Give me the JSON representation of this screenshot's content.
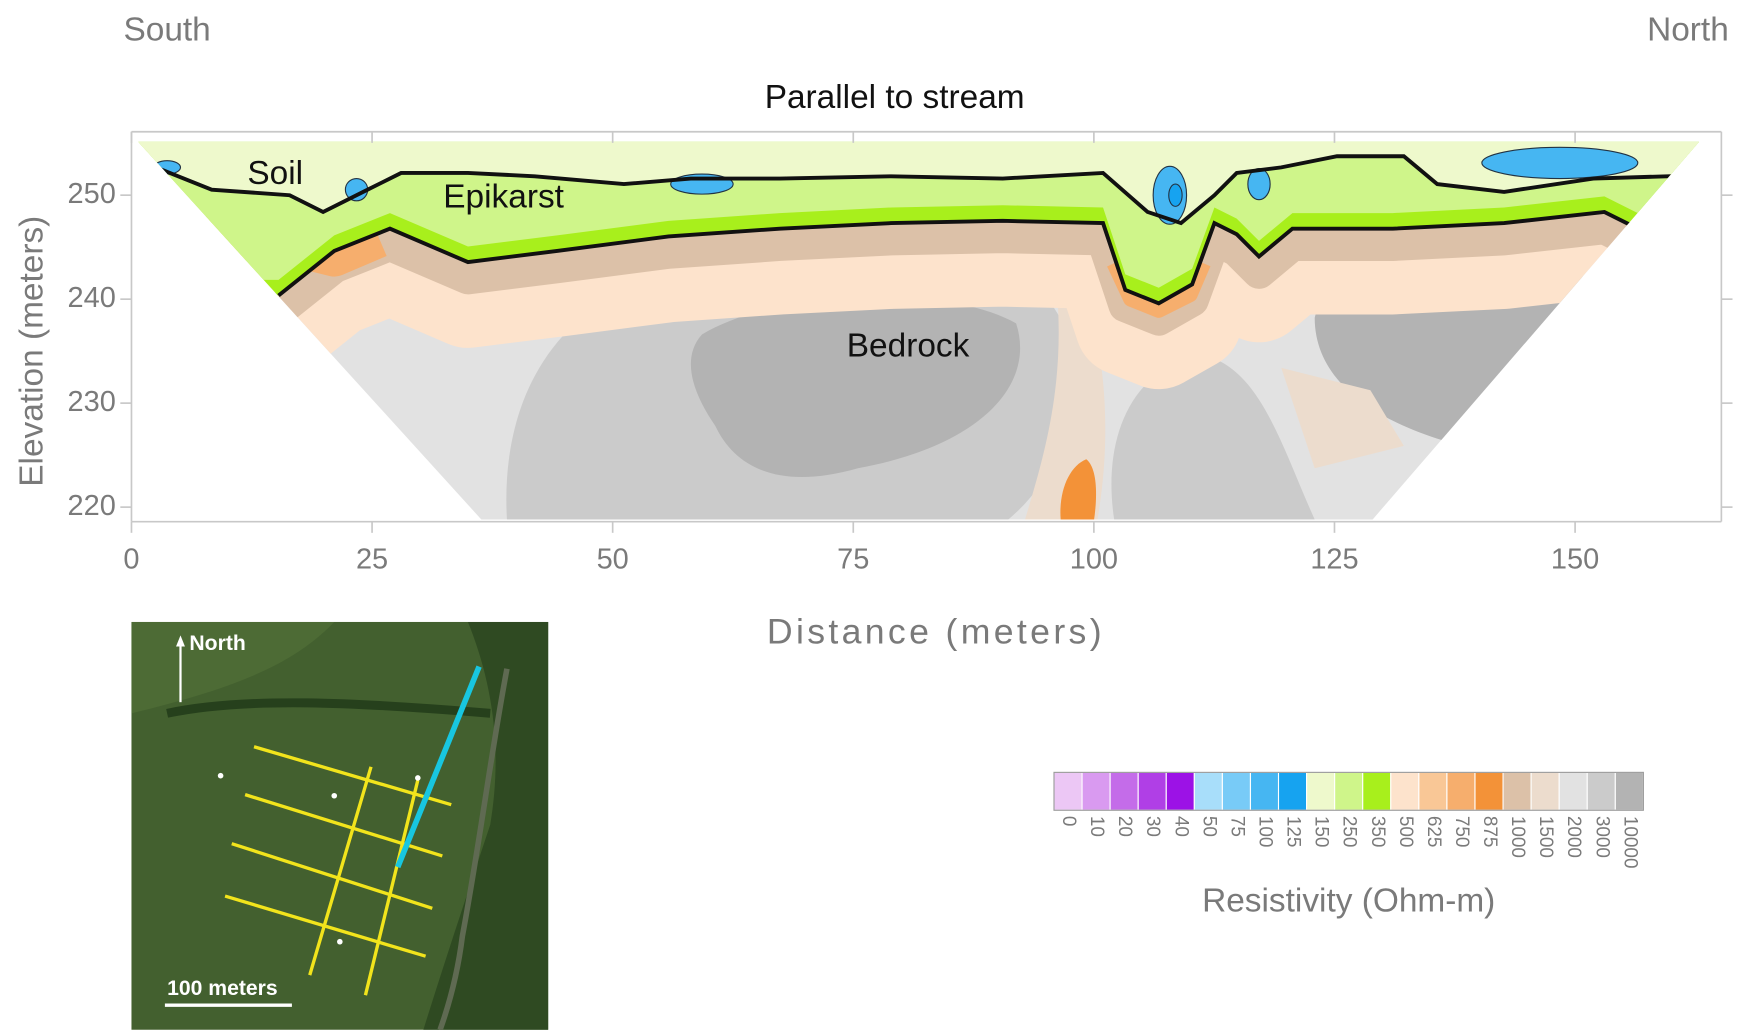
{
  "chart_data": {
    "type": "contour",
    "title": "Parallel to stream",
    "left_label": "South",
    "right_label": "North",
    "x_label": "Distance (meters)",
    "y_label": "Elevation (meters)",
    "annotations": [
      "Soil",
      "Epikarst",
      "Bedrock"
    ],
    "xlim": [
      0,
      165.2
    ],
    "xticks": [
      0,
      25,
      50,
      75,
      100,
      125,
      150
    ],
    "ylim": [
      218.6,
      256.1
    ],
    "yticks": [
      220,
      230,
      240,
      250
    ],
    "colorbar": {
      "label": "Resistivity (Ohm-m)",
      "levels": [
        0,
        10,
        20,
        30,
        40,
        50,
        75,
        100,
        125,
        150,
        250,
        350,
        500,
        625,
        750,
        875,
        1000,
        1500,
        2000,
        3000,
        10000
      ],
      "colors": [
        "#ecc7f5",
        "#d99af0",
        "#c46ce9",
        "#b03fe6",
        "#9c12e6",
        "#a8defa",
        "#78cbf7",
        "#46b6f2",
        "#16a3f0",
        "#eef9cc",
        "#cff58a",
        "#a8ef1c",
        "#fde3cc",
        "#f9c796",
        "#f6ae6d",
        "#f39238",
        "#dcc1a8",
        "#ecdccd",
        "#e2e2e2",
        "#cbcbcb",
        "#b3b3b3"
      ]
    }
  },
  "inset": {
    "north": "North",
    "scale": "100 meters"
  }
}
